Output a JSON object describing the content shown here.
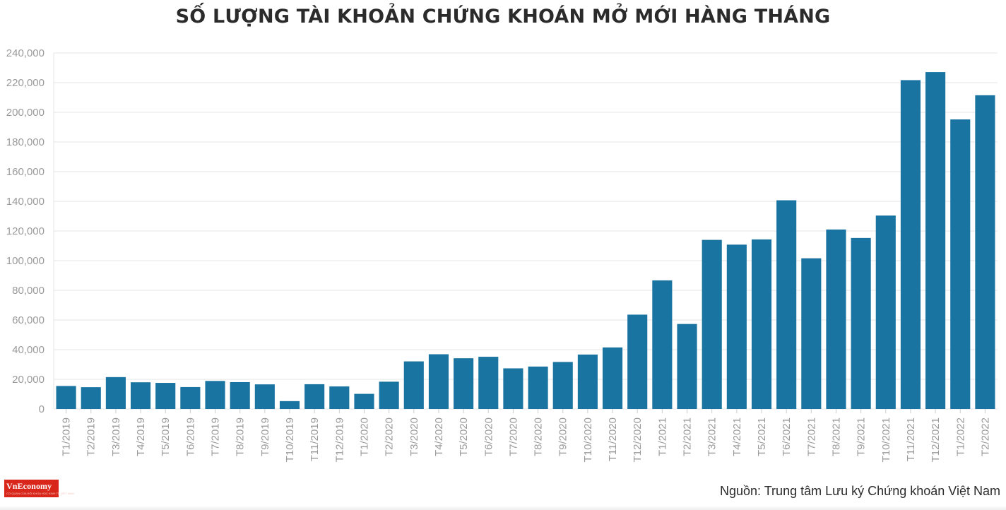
{
  "title": "SỐ LƯỢNG TÀI KHOẢN CHỨNG KHOÁN MỞ MỚI HÀNG THÁNG",
  "source": "Nguồn: Trung tâm Lưu ký Chứng khoán Việt Nam",
  "logo": {
    "text": "VnEconomy",
    "tagline": "CƠ QUAN CỦA HỘI KHOA HỌC KINH TẾ VIỆT NAM"
  },
  "colors": {
    "bar": "#1a74a1",
    "grid": "#e6e6e6",
    "axis_text": "#9a9a9a",
    "title": "#2b2b2b",
    "logo_bg": "#d8261b"
  },
  "chart_data": {
    "type": "bar",
    "title": "SỐ LƯỢNG TÀI KHOẢN CHỨNG KHOÁN MỞ MỚI HÀNG THÁNG",
    "xlabel": "",
    "ylabel": "",
    "ylim": [
      0,
      240000
    ],
    "yticks": [
      0,
      20000,
      40000,
      60000,
      80000,
      100000,
      120000,
      140000,
      160000,
      180000,
      200000,
      220000,
      240000
    ],
    "ytick_labels": [
      "0",
      "20,000",
      "40,000",
      "60,000",
      "80,000",
      "100,000",
      "120,000",
      "140,000",
      "160,000",
      "180,000",
      "200,000",
      "220,000",
      "240,000"
    ],
    "grid": true,
    "categories": [
      "T1/2019",
      "T2/2019",
      "T3/2019",
      "T4/2019",
      "T5/2019",
      "T6/2019",
      "T7/2019",
      "T8/2019",
      "T9/2019",
      "T10/2019",
      "T11/2019",
      "T12/2019",
      "T1/2020",
      "T2/2020",
      "T3/2020",
      "T4/2020",
      "T5/2020",
      "T6/2020",
      "T7/2020",
      "T8/2020",
      "T9/2020",
      "T10/2020",
      "T11/2020",
      "T12/2020",
      "T1/2021",
      "T2/2021",
      "T3/2021",
      "T4/2021",
      "T5/2021",
      "T6/2021",
      "T7/2021",
      "T8/2021",
      "T9/2021",
      "T10/2021",
      "T11/2021",
      "T12/2021",
      "T1/2022",
      "T2/2022"
    ],
    "values": [
      15500,
      14700,
      21500,
      18000,
      17600,
      14800,
      18900,
      18100,
      16600,
      5300,
      16700,
      15200,
      10200,
      18400,
      32100,
      36900,
      34200,
      35200,
      27400,
      28600,
      31700,
      36700,
      41500,
      63600,
      86700,
      57300,
      114000,
      110800,
      114300,
      140700,
      101600,
      121000,
      115300,
      130400,
      221700,
      227100,
      195200,
      211500
    ]
  }
}
